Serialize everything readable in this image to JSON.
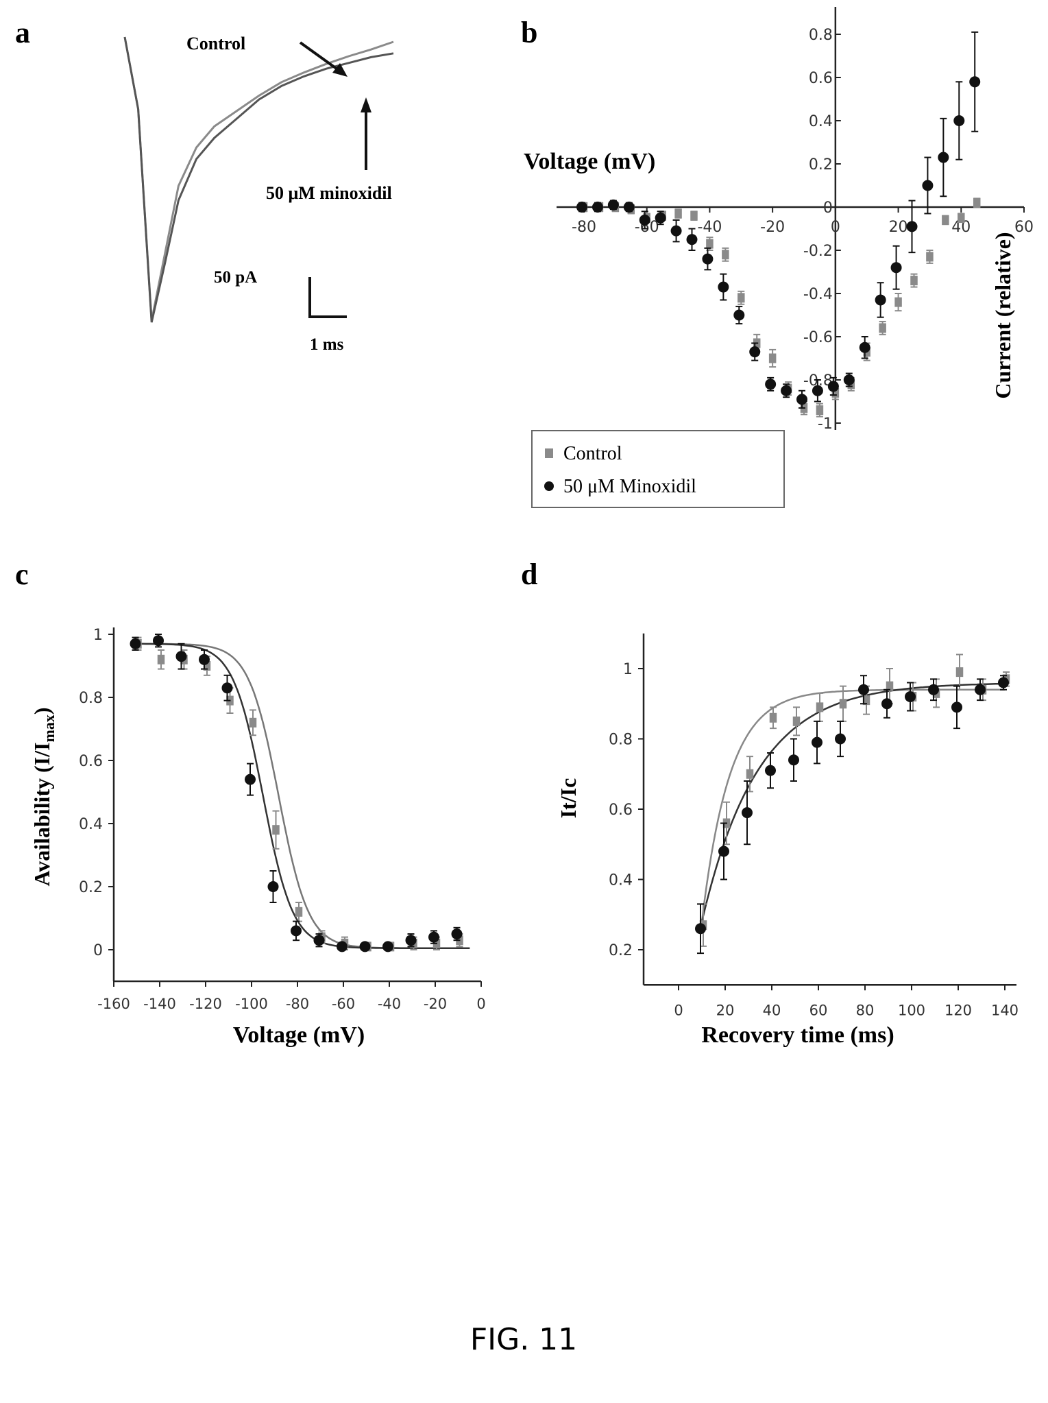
{
  "figure": {
    "caption": "FIG. 11"
  },
  "panels": {
    "a": {
      "letter": "a",
      "annot_control": "Control",
      "annot_drug": "50 μM minoxidil",
      "scale_y": "50 pA",
      "scale_x": "1 ms"
    },
    "b": {
      "letter": "b",
      "xlabel": "Voltage (mV)",
      "ylabel": "Current (relative)"
    },
    "c": {
      "letter": "c",
      "xlabel": "Voltage (mV)",
      "ylabel_main": "Availability (I/I",
      "ylabel_sub": "max",
      "ylabel_end": ")"
    },
    "d": {
      "letter": "d",
      "xlabel": "Recovery time (ms)",
      "ylabel": "It/Ic"
    }
  },
  "colors": {
    "control": "#8a8a8a",
    "drug": "#111111",
    "axis": "#222222"
  },
  "chart_data": [
    {
      "panel": "a",
      "type": "line",
      "series": [
        {
          "name": "Control",
          "x": [
            0,
            0.3,
            0.6,
            0.9,
            1.2,
            1.6,
            2.0,
            2.5,
            3.0,
            3.5,
            4.0,
            4.5,
            5.0,
            5.5,
            6.0
          ],
          "y": [
            -5,
            -80,
            -300,
            -230,
            -160,
            -120,
            -98,
            -82,
            -66,
            -52,
            -42,
            -33,
            -25,
            -18,
            -10
          ]
        },
        {
          "name": "50 μM minoxidil",
          "x": [
            0,
            0.3,
            0.6,
            0.9,
            1.2,
            1.6,
            2.0,
            2.5,
            3.0,
            3.5,
            4.0,
            4.5,
            5.0,
            5.5,
            6.0
          ],
          "y": [
            -5,
            -80,
            -302,
            -240,
            -175,
            -132,
            -110,
            -90,
            -70,
            -56,
            -46,
            -38,
            -32,
            -26,
            -22
          ]
        }
      ],
      "scale_bar": {
        "y_value": 50,
        "y_unit": "pA",
        "x_value": 1,
        "x_unit": "ms"
      }
    },
    {
      "panel": "b",
      "type": "scatter",
      "xlim": [
        -90,
        60
      ],
      "ylim": [
        -1.0,
        0.8
      ],
      "xticks": [
        -80,
        -60,
        -40,
        -20,
        0,
        20,
        40,
        60
      ],
      "yticks": [
        0.8,
        0.6,
        0.4,
        0.2,
        0.0,
        -0.2,
        -0.4,
        -0.6,
        -0.8,
        -1.0
      ],
      "legend": {
        "position": "bottom-left",
        "entries": [
          "Control",
          "50 μM Minoxidil"
        ]
      },
      "series": [
        {
          "name": "Control",
          "x": [
            -80,
            -75,
            -70,
            -65,
            -60,
            -55,
            -50,
            -45,
            -40,
            -35,
            -30,
            -25,
            -20,
            -15,
            -10,
            -5,
            0,
            5,
            10,
            15,
            20,
            25,
            30,
            35,
            40,
            45
          ],
          "y": [
            0.0,
            0.0,
            0.0,
            -0.01,
            -0.05,
            -0.04,
            -0.03,
            -0.04,
            -0.17,
            -0.22,
            -0.42,
            -0.63,
            -0.7,
            -0.84,
            -0.93,
            -0.94,
            -0.86,
            -0.82,
            -0.67,
            -0.56,
            -0.44,
            -0.34,
            -0.23,
            -0.06,
            -0.05,
            0.02
          ],
          "err": [
            0.02,
            0.02,
            0.02,
            0.02,
            0.02,
            0.02,
            0.02,
            0.02,
            0.03,
            0.03,
            0.03,
            0.04,
            0.04,
            0.03,
            0.03,
            0.03,
            0.03,
            0.03,
            0.04,
            0.03,
            0.04,
            0.03,
            0.03,
            0.02,
            0.02,
            0.02
          ]
        },
        {
          "name": "50 μM Minoxidil",
          "x": [
            -80,
            -75,
            -70,
            -65,
            -60,
            -55,
            -50,
            -45,
            -40,
            -35,
            -30,
            -25,
            -20,
            -15,
            -10,
            -5,
            0,
            5,
            10,
            15,
            20,
            25,
            30,
            35,
            40,
            45
          ],
          "y": [
            0.0,
            0.0,
            0.01,
            0.0,
            -0.06,
            -0.05,
            -0.11,
            -0.15,
            -0.24,
            -0.37,
            -0.5,
            -0.67,
            -0.82,
            -0.85,
            -0.89,
            -0.85,
            -0.83,
            -0.8,
            -0.65,
            -0.43,
            -0.28,
            -0.09,
            0.1,
            0.23,
            0.4,
            0.58
          ],
          "err": [
            0.02,
            0.02,
            0.02,
            0.02,
            0.04,
            0.03,
            0.05,
            0.05,
            0.05,
            0.06,
            0.04,
            0.04,
            0.03,
            0.03,
            0.04,
            0.05,
            0.04,
            0.03,
            0.05,
            0.08,
            0.1,
            0.12,
            0.13,
            0.18,
            0.18,
            0.23
          ]
        }
      ]
    },
    {
      "panel": "c",
      "type": "scatter",
      "xlim": [
        -160,
        0
      ],
      "ylim": [
        -0.1,
        1.0
      ],
      "xticks": [
        -160,
        -140,
        -120,
        -100,
        -80,
        -60,
        -40,
        -20,
        0
      ],
      "yticks": [
        0.0,
        0.2,
        0.4,
        0.6,
        0.8,
        1.0
      ],
      "series": [
        {
          "name": "Control",
          "x": [
            -150,
            -140,
            -130,
            -120,
            -110,
            -100,
            -90,
            -80,
            -70,
            -60,
            -50,
            -40,
            -30,
            -20,
            -10
          ],
          "y": [
            0.97,
            0.92,
            0.92,
            0.9,
            0.79,
            0.72,
            0.38,
            0.12,
            0.04,
            0.02,
            0.01,
            0.01,
            0.02,
            0.02,
            0.03
          ],
          "err": [
            0.02,
            0.03,
            0.03,
            0.03,
            0.04,
            0.04,
            0.06,
            0.03,
            0.02,
            0.02,
            0.01,
            0.01,
            0.02,
            0.02,
            0.02
          ]
        },
        {
          "name": "50 μM Minoxidil",
          "x": [
            -150,
            -140,
            -130,
            -120,
            -110,
            -100,
            -90,
            -80,
            -70,
            -60,
            -50,
            -40,
            -30,
            -20,
            -10
          ],
          "y": [
            0.97,
            0.98,
            0.93,
            0.92,
            0.83,
            0.54,
            0.2,
            0.06,
            0.03,
            0.01,
            0.01,
            0.01,
            0.03,
            0.04,
            0.05
          ],
          "err": [
            0.02,
            0.02,
            0.04,
            0.03,
            0.04,
            0.05,
            0.05,
            0.03,
            0.02,
            0.01,
            0.01,
            0.01,
            0.02,
            0.02,
            0.02
          ]
        }
      ],
      "fit_v_half": [
        -88.2,
        -95.0
      ],
      "fit_k": 6.5
    },
    {
      "panel": "d",
      "type": "scatter",
      "xlim": [
        -15,
        145
      ],
      "ylim": [
        0.1,
        1.1
      ],
      "xticks": [
        0,
        20,
        40,
        60,
        80,
        100,
        120,
        140
      ],
      "yticks": [
        0.2,
        0.4,
        0.6,
        0.8,
        1.0
      ],
      "series": [
        {
          "name": "Control",
          "x": [
            10,
            20,
            30,
            40,
            50,
            60,
            70,
            80,
            90,
            100,
            110,
            120,
            130,
            140
          ],
          "y": [
            0.27,
            0.56,
            0.7,
            0.86,
            0.85,
            0.89,
            0.9,
            0.91,
            0.95,
            0.92,
            0.93,
            0.99,
            0.94,
            0.97
          ],
          "err": [
            0.06,
            0.06,
            0.05,
            0.03,
            0.04,
            0.04,
            0.05,
            0.04,
            0.05,
            0.04,
            0.04,
            0.05,
            0.03,
            0.02
          ]
        },
        {
          "name": "50 μM Minoxidil",
          "x": [
            10,
            20,
            30,
            40,
            50,
            60,
            70,
            80,
            90,
            100,
            110,
            120,
            130,
            140
          ],
          "y": [
            0.26,
            0.48,
            0.59,
            0.71,
            0.74,
            0.79,
            0.8,
            0.94,
            0.9,
            0.92,
            0.94,
            0.89,
            0.94,
            0.96
          ],
          "err": [
            0.07,
            0.08,
            0.09,
            0.05,
            0.06,
            0.06,
            0.05,
            0.04,
            0.04,
            0.04,
            0.03,
            0.06,
            0.03,
            0.02
          ]
        }
      ],
      "fit_tau": [
        12.0,
        24.0
      ],
      "fit_plateau": [
        0.94,
        0.96
      ],
      "fit_t0": 8
    }
  ]
}
